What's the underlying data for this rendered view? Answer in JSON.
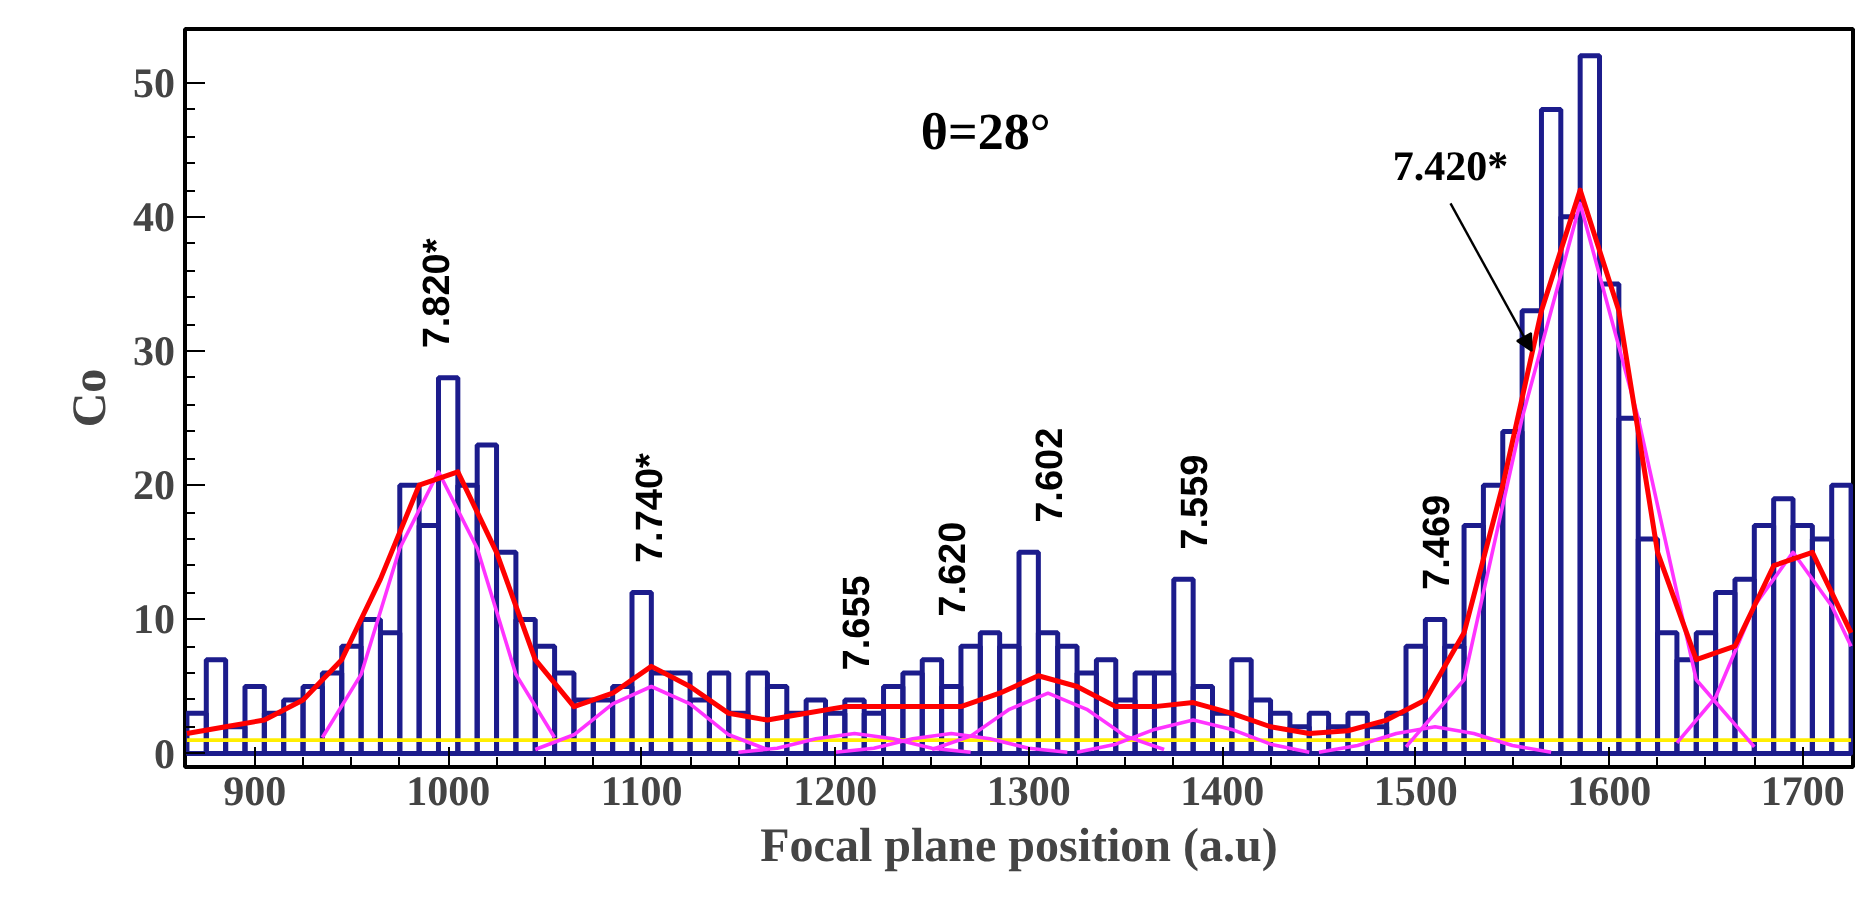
{
  "chart_data": {
    "type": "histogram",
    "xlabel": "Focal plane position (a.u)",
    "ylabel": "Co",
    "color": "#1c1c8c",
    "bins": [
      865,
      875,
      885,
      895,
      905,
      915,
      925,
      935,
      945,
      955,
      965,
      975,
      985,
      995,
      1005,
      1015,
      1025,
      1035,
      1045,
      1055,
      1065,
      1075,
      1085,
      1095,
      1105,
      1115,
      1125,
      1135,
      1145,
      1155,
      1165,
      1175,
      1185,
      1195,
      1205,
      1215,
      1225,
      1235,
      1245,
      1255,
      1265,
      1275,
      1285,
      1295,
      1305,
      1315,
      1325,
      1335,
      1345,
      1355,
      1365,
      1375,
      1385,
      1395,
      1405,
      1415,
      1425,
      1435,
      1445,
      1455,
      1465,
      1475,
      1485,
      1495,
      1505,
      1515,
      1525,
      1535,
      1545,
      1555,
      1565,
      1575,
      1585,
      1595,
      1605,
      1615,
      1625,
      1635,
      1645,
      1655,
      1665,
      1675,
      1685,
      1695,
      1705,
      1715,
      1725
    ],
    "values": [
      3,
      7,
      2,
      5,
      3,
      4,
      5,
      6,
      8,
      10,
      9,
      20,
      17,
      28,
      20,
      23,
      15,
      10,
      8,
      6,
      4,
      4,
      5,
      12,
      6,
      6,
      4,
      6,
      3,
      6,
      5,
      3,
      4,
      3,
      4,
      3,
      5,
      6,
      7,
      5,
      8,
      9,
      8,
      15,
      9,
      8,
      6,
      7,
      4,
      6,
      6,
      13,
      5,
      3,
      7,
      4,
      3,
      2,
      3,
      2,
      3,
      2,
      3,
      8,
      10,
      8,
      17,
      20,
      24,
      33,
      48,
      40,
      52,
      35,
      25,
      16,
      9,
      7,
      9,
      12,
      13,
      17,
      19,
      17,
      16,
      20
    ],
    "series": [
      {
        "type": "line",
        "color": "#ffee00",
        "x": [
          865,
          1725
        ],
        "values": [
          1,
          1
        ]
      },
      {
        "type": "line",
        "color": "#ff33ff",
        "x": [
          935,
          955,
          975,
          995,
          1015,
          1035,
          1055
        ],
        "values": [
          1.2,
          5.9,
          15.3,
          21,
          15.3,
          5.9,
          1.2
        ]
      },
      {
        "type": "line",
        "color": "#ff33ff",
        "x": [
          1045,
          1065,
          1085,
          1105,
          1125,
          1145,
          1165
        ],
        "values": [
          0.3,
          1.4,
          3.7,
          5,
          3.7,
          1.4,
          0.3
        ]
      },
      {
        "type": "line",
        "color": "#ff33ff",
        "x": [
          1150,
          1170,
          1190,
          1210,
          1230,
          1250,
          1270
        ],
        "values": [
          0.1,
          0.4,
          1.1,
          1.5,
          1.1,
          0.4,
          0.1
        ]
      },
      {
        "type": "line",
        "color": "#ff33ff",
        "x": [
          1200,
          1220,
          1240,
          1260,
          1280,
          1300,
          1320
        ],
        "values": [
          0.1,
          0.4,
          1.1,
          1.5,
          1.1,
          0.4,
          0.1
        ]
      },
      {
        "type": "line",
        "color": "#ff33ff",
        "x": [
          1250,
          1270,
          1290,
          1310,
          1330,
          1350,
          1370
        ],
        "values": [
          0.3,
          1.3,
          3.3,
          4.5,
          3.3,
          1.3,
          0.3
        ]
      },
      {
        "type": "line",
        "color": "#ff33ff",
        "x": [
          1325,
          1345,
          1365,
          1385,
          1405,
          1425,
          1445
        ],
        "values": [
          0.1,
          0.7,
          1.8,
          2.5,
          1.8,
          0.7,
          0.1
        ]
      },
      {
        "type": "line",
        "color": "#ff33ff",
        "x": [
          1450,
          1470,
          1490,
          1510,
          1530,
          1550,
          1570
        ],
        "values": [
          0.1,
          0.6,
          1.5,
          2,
          1.5,
          0.6,
          0.1
        ]
      },
      {
        "type": "line",
        "color": "#ff33ff",
        "x": [
          1495,
          1525,
          1555,
          1585,
          1615,
          1645,
          1675
        ],
        "values": [
          0.5,
          5.5,
          25,
          41,
          25,
          5.5,
          0.5
        ]
      },
      {
        "type": "line",
        "color": "#ff33ff",
        "x": [
          1635,
          1655,
          1675,
          1695,
          1715,
          1725
        ],
        "values": [
          0.8,
          4.2,
          11,
          15,
          11,
          8
        ]
      },
      {
        "type": "line",
        "color": "#ff0000",
        "x": [
          865,
          885,
          905,
          925,
          945,
          965,
          985,
          1005,
          1025,
          1045,
          1065,
          1085,
          1105,
          1125,
          1145,
          1165,
          1185,
          1205,
          1225,
          1245,
          1265,
          1285,
          1305,
          1325,
          1345,
          1365,
          1385,
          1405,
          1425,
          1445,
          1465,
          1485,
          1505,
          1525,
          1545,
          1565,
          1585,
          1605,
          1625,
          1645,
          1665,
          1685,
          1705,
          1725
        ],
        "values": [
          1.5,
          2,
          2.5,
          4,
          7,
          13,
          20,
          21,
          15,
          7,
          3.5,
          4.5,
          6.5,
          5,
          3,
          2.5,
          3,
          3.5,
          3.5,
          3.5,
          3.5,
          4.5,
          5.8,
          5,
          3.5,
          3.5,
          3.8,
          3,
          2,
          1.5,
          1.7,
          2.5,
          4,
          9,
          20,
          33,
          42,
          33,
          15,
          7,
          8,
          14,
          15,
          9
        ]
      }
    ],
    "annotations": [
      "7.820*",
      "7.740*",
      "7.655",
      "7.620",
      "7.602",
      "7.559",
      "7.469",
      {
        "text": "7.420*",
        "x": 1560,
        "y": 30
      },
      "θ=28°"
    ],
    "xlim": [
      864,
      1726
    ],
    "ylim": [
      -1,
      54
    ],
    "xticks": [
      900,
      1000,
      1100,
      1200,
      1300,
      1400,
      1500,
      1600,
      1700
    ],
    "yticks": [
      0,
      10,
      20,
      30,
      40,
      50
    ],
    "grid": false
  }
}
